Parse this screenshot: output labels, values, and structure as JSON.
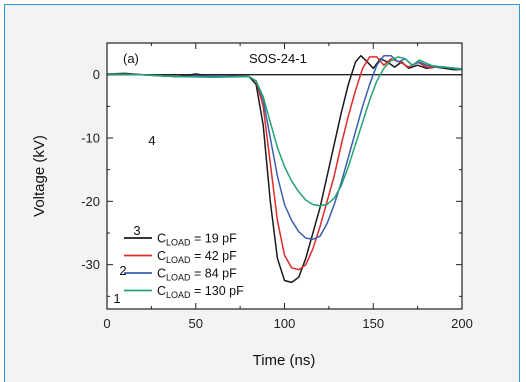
{
  "chart_data": {
    "type": "line",
    "panel_label": "(a)",
    "title": "SOS-24-1",
    "xlabel": "Time (ns)",
    "ylabel": "Voltage (kV)",
    "xlim": [
      0,
      200
    ],
    "ylim": [
      -37,
      5
    ],
    "x_ticks": [
      0,
      50,
      100,
      150,
      200
    ],
    "y_ticks": [
      0,
      -10,
      -20,
      -30
    ],
    "grid": false,
    "legend_placement": "bottom-left",
    "reference_line_y": 0,
    "series": [
      {
        "name": "C_LOAD = 19 pF",
        "legend": {
          "prefix": "C",
          "sub": "LOAD",
          "suffix": " = 19 pF"
        },
        "curve_label": "1",
        "color": "#1a1a1a",
        "x": [
          0,
          10,
          20,
          30,
          40,
          50,
          60,
          70,
          80,
          84,
          88,
          92,
          96,
          100,
          104,
          108,
          112,
          116,
          120,
          124,
          128,
          132,
          136,
          140,
          143,
          146,
          150,
          154,
          158,
          162,
          166,
          170,
          175,
          180,
          185,
          190,
          195,
          200
        ],
        "y": [
          0.1,
          0.2,
          0,
          -0.2,
          -0.3,
          0.1,
          -0.3,
          -0.2,
          -0.3,
          -1.5,
          -8,
          -20,
          -29,
          -32.5,
          -32.8,
          -32,
          -29,
          -25,
          -21,
          -16,
          -11,
          -6,
          -1.5,
          2,
          3,
          2.2,
          1,
          2.5,
          2,
          1.2,
          2,
          1,
          1.5,
          1,
          1.2,
          1,
          0.8,
          0.8
        ]
      },
      {
        "name": "C_LOAD = 42 pF",
        "legend": {
          "prefix": "C",
          "sub": "LOAD",
          "suffix": " = 42 pF"
        },
        "curve_label": "2",
        "color": "#e02a2a",
        "x": [
          0,
          20,
          40,
          60,
          80,
          84,
          88,
          92,
          96,
          100,
          104,
          108,
          112,
          116,
          120,
          124,
          128,
          132,
          136,
          140,
          144,
          148,
          152,
          156,
          160,
          165,
          170,
          175,
          180,
          190,
          200
        ],
        "y": [
          0.1,
          0,
          -0.3,
          -0.2,
          -0.3,
          -1,
          -5,
          -14,
          -23,
          -28.5,
          -30.5,
          -30.8,
          -30,
          -27.5,
          -24,
          -20,
          -16,
          -11,
          -6.5,
          -2.5,
          1,
          2.8,
          2.8,
          1.5,
          2.5,
          2,
          1.2,
          2,
          1.2,
          1.2,
          0.9
        ]
      },
      {
        "name": "C_LOAD = 84 pF",
        "legend": {
          "prefix": "C",
          "sub": "LOAD",
          "suffix": " = 84 pF"
        },
        "curve_label": "3",
        "color": "#3a5fb0",
        "x": [
          0,
          20,
          40,
          60,
          80,
          84,
          88,
          92,
          96,
          100,
          104,
          108,
          112,
          116,
          120,
          124,
          128,
          132,
          136,
          140,
          144,
          148,
          152,
          156,
          160,
          164,
          168,
          172,
          176,
          180,
          190,
          200
        ],
        "y": [
          0.1,
          0,
          -0.3,
          -0.2,
          -0.3,
          -1,
          -4,
          -10,
          -16,
          -20.5,
          -23,
          -24.8,
          -25.8,
          -26,
          -25.5,
          -23.5,
          -20.5,
          -17,
          -13,
          -9,
          -5,
          -1.5,
          1.5,
          3,
          3,
          2,
          2.5,
          1.5,
          2,
          1.5,
          1.2,
          0.9
        ]
      },
      {
        "name": "C_LOAD = 130 pF",
        "legend": {
          "prefix": "C",
          "sub": "LOAD",
          "suffix": " = 130 pF"
        },
        "curve_label": "4",
        "color": "#22a572",
        "x": [
          0,
          20,
          40,
          60,
          80,
          84,
          88,
          92,
          96,
          100,
          104,
          108,
          112,
          116,
          120,
          124,
          128,
          132,
          136,
          140,
          144,
          148,
          152,
          156,
          160,
          164,
          168,
          172,
          176,
          180,
          185,
          190,
          200
        ],
        "y": [
          0.1,
          0,
          -0.3,
          -0.4,
          -0.3,
          -1,
          -3.5,
          -7.5,
          -11.5,
          -14.5,
          -16.8,
          -18.5,
          -19.8,
          -20.5,
          -20.7,
          -20.5,
          -19.5,
          -17.5,
          -14.5,
          -11,
          -7.5,
          -4,
          -1,
          1,
          2.2,
          2.8,
          2.5,
          1.5,
          2.3,
          1.8,
          1.2,
          1.2,
          0.8
        ]
      }
    ]
  }
}
